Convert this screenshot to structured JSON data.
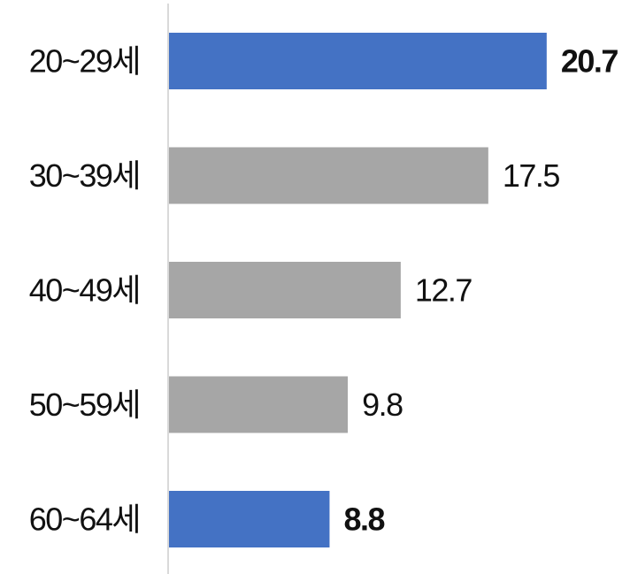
{
  "chart_data": {
    "type": "bar",
    "orientation": "horizontal",
    "categories": [
      "20~29세",
      "30~39세",
      "40~49세",
      "50~59세",
      "60~64세"
    ],
    "values": [
      20.7,
      17.5,
      12.7,
      9.8,
      8.8
    ],
    "highlighted": [
      true,
      false,
      false,
      false,
      true
    ],
    "xlim": [
      0,
      24
    ],
    "grid": false,
    "legend": "none",
    "colors": {
      "highlight": "#4472C4",
      "normal": "#A6A6A6",
      "axis": "#D9D9D9",
      "text": "#111111"
    }
  }
}
